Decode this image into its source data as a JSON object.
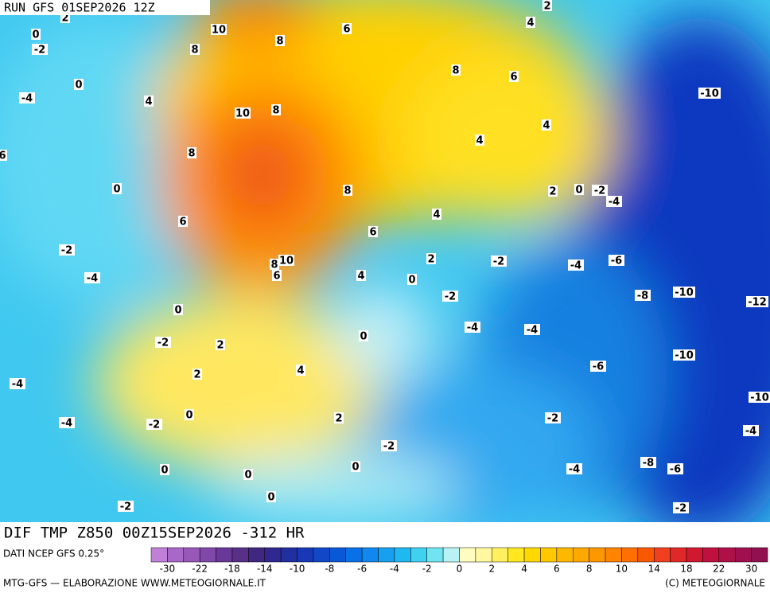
{
  "header": {
    "run": "RUN GFS 01SEP2026 12Z"
  },
  "map": {
    "caption": "DIF TMP Z850 00Z15SEP2026 -312 HR",
    "contour_labels": [
      2,
      0,
      -2,
      10,
      8,
      6,
      2,
      4,
      8,
      0,
      8,
      6,
      -4,
      4,
      -10,
      10,
      8,
      4,
      4,
      6,
      8,
      0,
      8,
      2,
      0,
      -2,
      -4,
      4,
      6,
      6,
      -2,
      8,
      10,
      2,
      -2,
      -4,
      -6,
      6,
      4,
      0,
      -4,
      -10,
      -8,
      -12,
      -2,
      0,
      -4,
      -4,
      0,
      -2,
      2,
      -10,
      -6,
      4,
      2,
      -4,
      -10,
      0,
      2,
      -2,
      -4,
      -2,
      -4,
      -2,
      0,
      -4,
      -8,
      -6,
      0,
      0,
      0,
      -2,
      -2
    ]
  },
  "legend": {
    "source": "DATI NCEP GFS 0.25°",
    "colors": [
      "#c080d8",
      "#a868c8",
      "#9858b8",
      "#8048a8",
      "#6a3898",
      "#583088",
      "#402880",
      "#302890",
      "#2030a0",
      "#1838b8",
      "#1048c8",
      "#0858d8",
      "#0870e8",
      "#1088f0",
      "#18a0f0",
      "#20b8f0",
      "#40d0f0",
      "#70e4f0",
      "#b8f2f4",
      "#fffcc0",
      "#fff8a0",
      "#fff060",
      "#ffe820",
      "#ffd800",
      "#ffc800",
      "#ffb800",
      "#ffa800",
      "#ff9800",
      "#ff8400",
      "#ff7000",
      "#f85800",
      "#f04020",
      "#e02828",
      "#d01830",
      "#c01040",
      "#b01048",
      "#a01050",
      "#901050"
    ],
    "ticks": [
      -30,
      -22,
      -18,
      -14,
      -10,
      -8,
      -6,
      -4,
      -2,
      0,
      2,
      4,
      6,
      8,
      10,
      14,
      18,
      22,
      30
    ]
  },
  "footer": {
    "left": "MTG-GFS — ELABORAZIONE WWW.METEOGIORNALE.IT",
    "right": "(C) METEOGIORNALE"
  }
}
